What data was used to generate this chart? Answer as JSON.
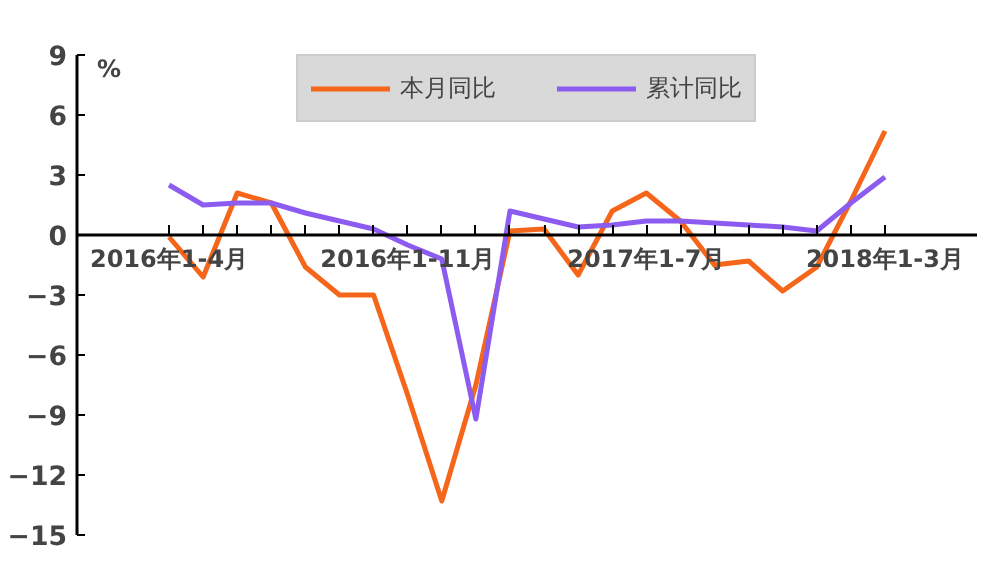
{
  "chart_data": {
    "type": "line",
    "ylabel": "%",
    "categories": [
      "2016年1-4月",
      null,
      null,
      null,
      null,
      null,
      null,
      "2016年1-11月",
      null,
      null,
      null,
      null,
      null,
      null,
      "2017年1-7月",
      null,
      null,
      null,
      null,
      null,
      null,
      "2018年1-3月"
    ],
    "series": [
      {
        "name": "本月同比",
        "color": "#f5661a",
        "values": [
          -0.1,
          -2.1,
          2.1,
          1.6,
          -1.6,
          -3.0,
          -3.0,
          -8.0,
          -13.3,
          -7.5,
          0.2,
          0.3,
          -2.0,
          1.2,
          2.1,
          0.7,
          -1.5,
          -1.3,
          -2.8,
          -1.6,
          1.7,
          5.2
        ]
      },
      {
        "name": "累计同比",
        "color": "#8c5cf0",
        "values": [
          2.5,
          1.5,
          1.6,
          1.6,
          1.1,
          0.7,
          0.3,
          -0.5,
          -1.2,
          -9.2,
          1.2,
          0.8,
          0.4,
          0.5,
          0.7,
          0.7,
          0.6,
          0.5,
          0.4,
          0.2,
          1.6,
          2.9
        ]
      }
    ],
    "ylim": [
      -15,
      9
    ],
    "yticks": [
      -15,
      -12,
      -9,
      -6,
      -3,
      0,
      3,
      6,
      9
    ],
    "grid": false,
    "legend": "top",
    "line_style": "solid",
    "marker": "none"
  }
}
